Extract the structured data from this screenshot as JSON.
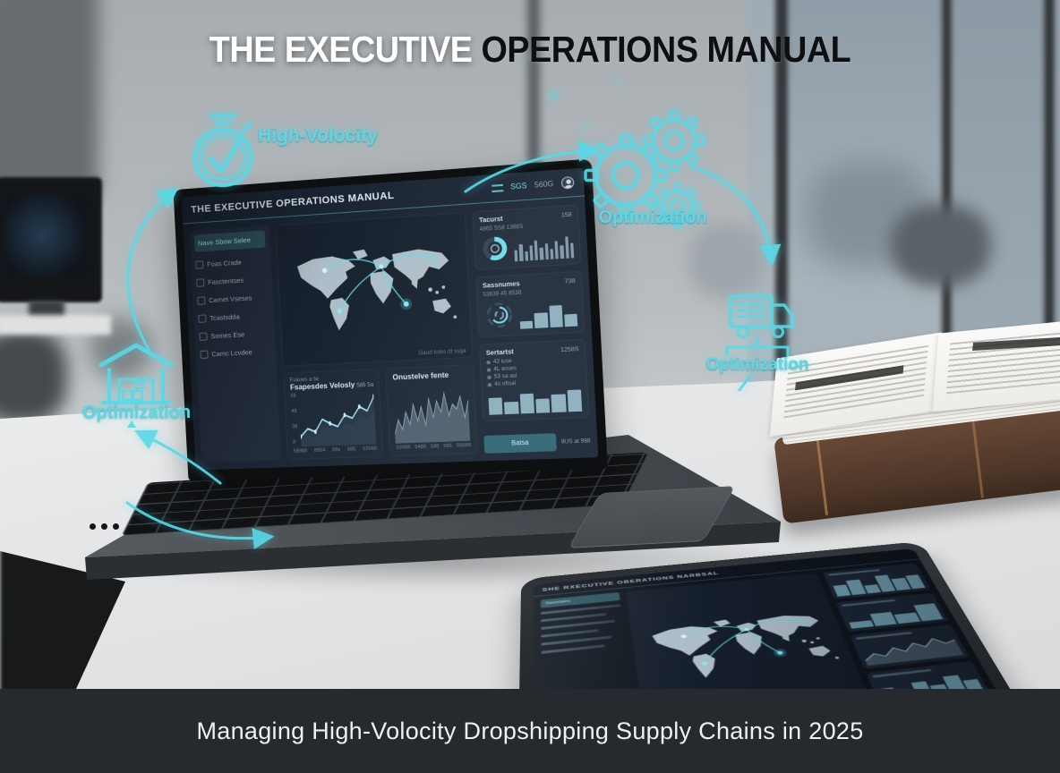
{
  "page": {
    "accent": "#5ad8e6",
    "title_white": "THE EXECUTIVE",
    "title_dark": " OPERATIONS MANUAL",
    "banner": "Managing High-Volocity Dropshipping Supply Chains in 2025"
  },
  "flow": {
    "labels": {
      "high_velocity": "High-Volocity",
      "optimization_gears": "Optimization",
      "optimization_truck": "Optimization",
      "optimization_warehouse": "Optimization"
    },
    "icons": [
      "stopwatch-check",
      "gears",
      "delivery-truck",
      "warehouse"
    ]
  },
  "laptop": {
    "header": {
      "title": "THE EXECUTIVE OPERATIONS MANUAL",
      "nav": [
        "SGS",
        "560G"
      ]
    },
    "sidebar": {
      "header": "Nave Sbow Selee",
      "items": [
        "Foas Crade",
        "Fasctentses",
        "Camet Vseses",
        "Tcastsdda",
        "Somes Ese",
        "Camc Lcvdee"
      ]
    },
    "map": {
      "caption": "Gaud tutes dt ssga"
    },
    "charts": {
      "velocity": {
        "eyebrow": "Fsaues a tw",
        "title": "Fsapesdes Velosly",
        "badge": "585 5a",
        "layer": [
          10,
          20,
          16,
          34,
          30,
          26,
          40,
          36,
          50,
          46,
          62
        ],
        "line": [
          18,
          32,
          26,
          48,
          40,
          34,
          54,
          48,
          68,
          60,
          86
        ],
        "x": [
          "58988",
          "8954",
          "58s",
          "585",
          "52988"
        ],
        "y": [
          "58",
          "48",
          "38",
          "8"
        ]
      },
      "cumulative": {
        "title": "Onustelve fente",
        "area": [
          15,
          38,
          22,
          50,
          30,
          62,
          35,
          58,
          28,
          70,
          40,
          66,
          48,
          78,
          42,
          60,
          52,
          72,
          38,
          65
        ],
        "x": [
          "53988",
          "5488",
          "588",
          "585",
          "59888"
        ]
      }
    },
    "cards": {
      "gauge": {
        "title": "Tacurst",
        "value": "158",
        "sub": "4865 SS8 1368S",
        "bars": [
          45,
          70,
          38,
          60,
          80,
          50,
          65,
          42,
          75,
          55,
          88,
          60
        ]
      },
      "radial": {
        "title": "Sassnumes",
        "value": "738",
        "sub": "53638 45 8538",
        "bars": [
          28,
          52,
          78,
          42
        ]
      },
      "stats": {
        "title": "Sertartst",
        "value": "1258S",
        "rows": [
          "43 iuse",
          "4L asses",
          "53 sa asl",
          "4s oftsal"
        ],
        "bars": [
          68,
          50,
          82,
          58,
          72,
          90
        ]
      },
      "cta": {
        "button": "Batsa",
        "note": "9US at 988"
      }
    }
  },
  "tablet": {
    "title": "SHE RXECUTIVE OBERATIONS NARBSAL",
    "side_header": "Sasetaes",
    "cards": {
      "a": [
        55,
        75,
        40,
        85,
        60,
        70
      ],
      "b": [
        30,
        60,
        45,
        80
      ],
      "spark": [
        20,
        45,
        30,
        60,
        40,
        70,
        50,
        80,
        55,
        65
      ],
      "c": [
        65,
        40,
        75,
        55,
        85,
        60
      ]
    }
  }
}
